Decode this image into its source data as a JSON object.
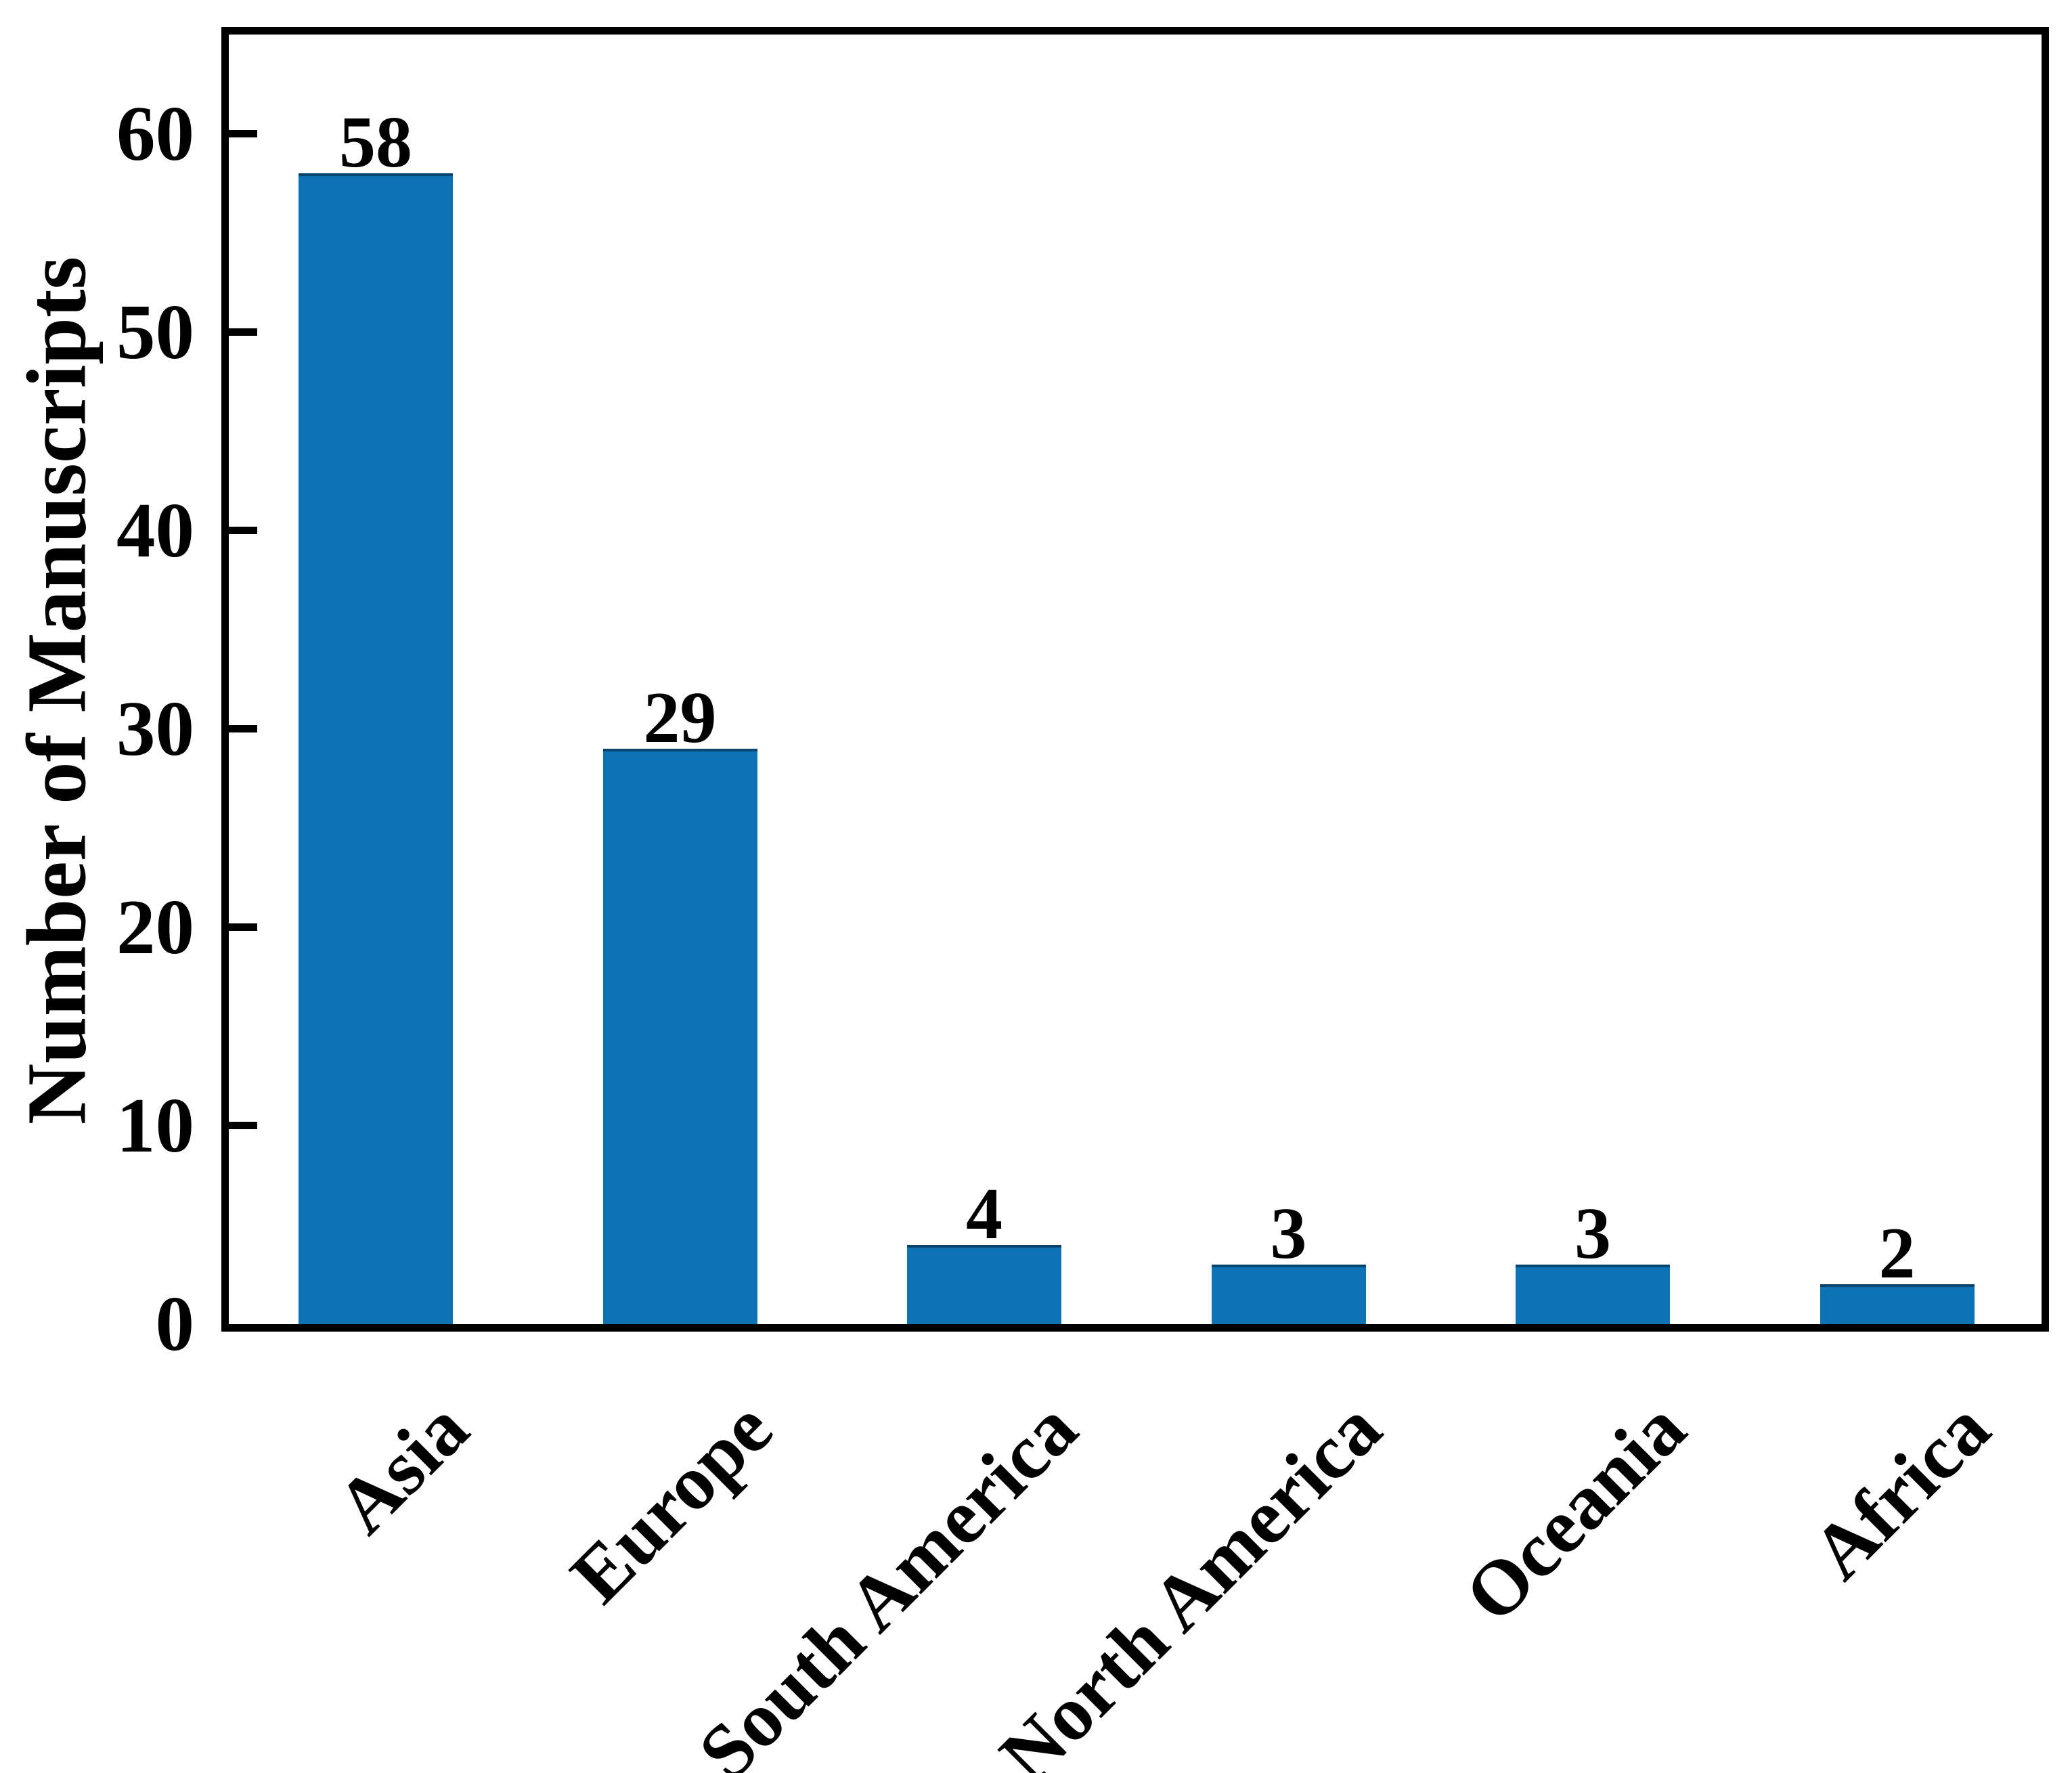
{
  "chart_data": {
    "type": "bar",
    "categories": [
      "Asia",
      "Europe",
      "South America",
      "North America",
      "Oceania",
      "Africa"
    ],
    "values": [
      58,
      29,
      4,
      3,
      3,
      2
    ],
    "data_labels": [
      "58",
      "29",
      "4",
      "3",
      "3",
      "2"
    ],
    "ylabel": "Number of Manuscripts",
    "yticks": [
      0,
      10,
      20,
      30,
      40,
      50,
      60
    ],
    "ytick_labels": [
      "0",
      "10",
      "20",
      "30",
      "40",
      "50",
      "60"
    ],
    "ylim": [
      0,
      65
    ],
    "xlabel": "",
    "title": "",
    "grid": false,
    "legend": null,
    "bar_color": "#0d73b5",
    "axis_color": "#000000",
    "text_color": "#000000",
    "background_color": "#ffffff",
    "tick_direction": "in",
    "x_label_rotation_deg": 45
  }
}
